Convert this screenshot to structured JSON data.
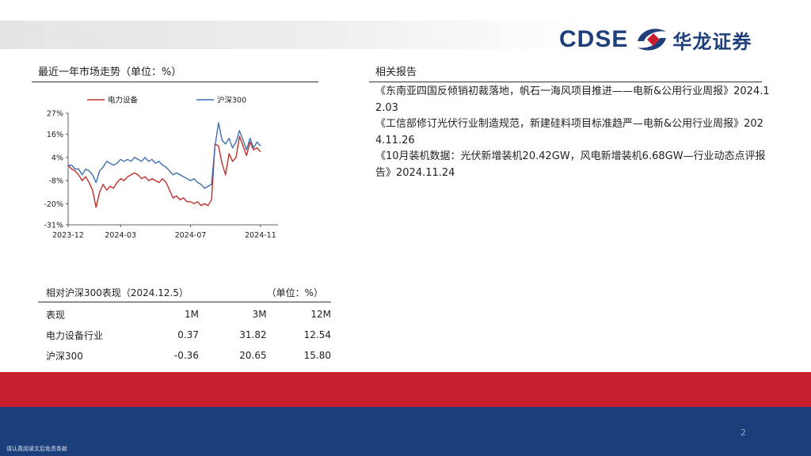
{
  "header": {
    "logo_en": "CDSE",
    "logo_cn": "华龙证券"
  },
  "market": {
    "title": "最近一年市场走势（单位：%）"
  },
  "related": {
    "title": "相关报告",
    "reports": [
      "《东南亚四国反倾销初裁落地，帆石一海风项目推进——电新&公用行业周报》2024.12.03",
      "《工信部修订光伏行业制造规范，新建硅料项目标准趋严—电新&公用行业周报》2024.11.26",
      "《10月装机数据：光伏新增装机20.42GW，风电新增装机6.68GW—行业动态点评报告》2024.11.24"
    ]
  },
  "performance": {
    "title": "相对沪深300表现（2024.12.5）",
    "unit": "（单位：%）",
    "header": [
      "表现",
      "1M",
      "3M",
      "12M"
    ],
    "rows": [
      [
        "电力设备行业",
        "0.37",
        "31.82",
        "12.54"
      ],
      [
        "沪深300",
        "-0.36",
        "20.65",
        "15.80"
      ]
    ]
  },
  "footer": {
    "page_number": "2",
    "disclaimer": "请认真阅读文后免责条款"
  },
  "colors": {
    "power_equipment": "#c0302a",
    "hs300": "#3d6fb0",
    "brand_blue": "#1b3f7a",
    "brand_red": "#c81e2d"
  },
  "chart_data": {
    "type": "line",
    "title": "",
    "xlabel": "",
    "ylabel": "",
    "ylim": [
      -31,
      27
    ],
    "y_ticks": [
      "27%",
      "16%",
      "4%",
      "-8%",
      "-20%",
      "-31%"
    ],
    "y_tick_values": [
      27,
      16,
      4,
      -8,
      -20,
      -31
    ],
    "x_ticks": [
      "2023-12",
      "2024-03",
      "2024-07",
      "2024-11"
    ],
    "x_tick_positions": [
      0,
      3,
      7,
      11
    ],
    "x_range": [
      0,
      12
    ],
    "legend_position": "top",
    "x": [
      0,
      0.2,
      0.4,
      0.6,
      0.8,
      1,
      1.2,
      1.4,
      1.6,
      1.8,
      2,
      2.2,
      2.4,
      2.6,
      2.8,
      3,
      3.2,
      3.4,
      3.6,
      3.8,
      4,
      4.2,
      4.4,
      4.6,
      4.8,
      5,
      5.2,
      5.4,
      5.6,
      5.8,
      6,
      6.2,
      6.4,
      6.6,
      6.8,
      7,
      7.2,
      7.4,
      7.6,
      7.8,
      8,
      8.2,
      8.4,
      8.6,
      8.8,
      9,
      9.2,
      9.4,
      9.6,
      9.8,
      10,
      10.2,
      10.4,
      10.6,
      10.8,
      11
    ],
    "series": [
      {
        "name": "电力设备",
        "values": [
          0,
          -2,
          -3,
          -5,
          -8,
          -6,
          -9,
          -13,
          -22,
          -14,
          -10,
          -13,
          -11,
          -12,
          -9,
          -7,
          -8,
          -6,
          -5,
          -4,
          -5,
          -7,
          -6,
          -8,
          -7,
          -8,
          -9,
          -7,
          -9,
          -13,
          -17,
          -16,
          -18,
          -17,
          -19,
          -19,
          -20,
          -19,
          -21,
          -20,
          -21,
          -18,
          11,
          10,
          1,
          -5,
          6,
          2,
          4,
          15,
          10,
          5,
          12,
          8,
          9,
          7
        ],
        "color": "#c0302a"
      },
      {
        "name": "沪深300",
        "values": [
          0,
          0,
          -2,
          -2,
          -5,
          -2,
          -3,
          -5,
          -9,
          -3,
          -1,
          2,
          1,
          0,
          1,
          3,
          2,
          3,
          2,
          4,
          3,
          2,
          4,
          2,
          3,
          1,
          2,
          0,
          -1,
          -3,
          -5,
          -4,
          -5,
          -6,
          -7,
          -8,
          -7,
          -9,
          -10,
          -12,
          -11,
          -10,
          10,
          22,
          13,
          11,
          14,
          9,
          12,
          18,
          13,
          8,
          14,
          9,
          12,
          10
        ],
        "color": "#3d6fb0"
      }
    ]
  }
}
